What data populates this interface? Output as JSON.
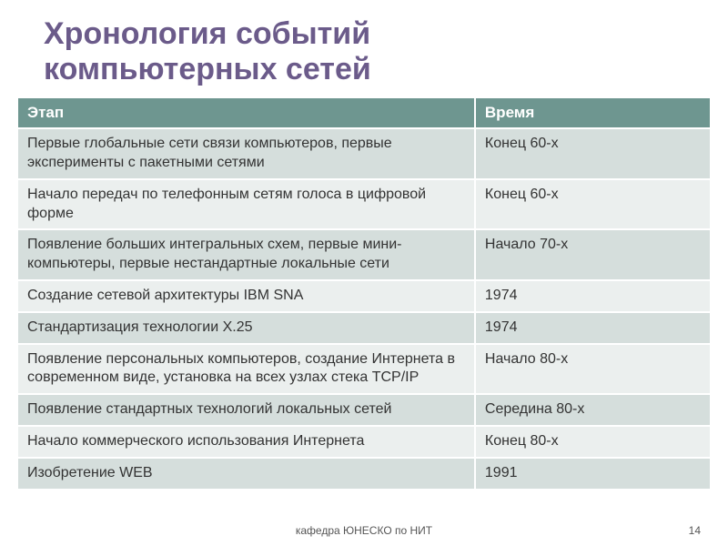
{
  "title_line1": "Хронология событий",
  "title_line2": "компьютерных сетей",
  "table": {
    "header_bg": "#6e9690",
    "row_bg_odd": "#d5dedc",
    "row_bg_even": "#ebefee",
    "header_text_color": "#ffffff",
    "cell_text_color": "#333333",
    "columns": [
      "Этап",
      "Время"
    ],
    "col_widths_pct": [
      66,
      34
    ],
    "rows": [
      [
        "Первые глобальные сети связи компьютеров, первые эксперименты с пакетными сетями",
        "Конец 60-х"
      ],
      [
        "Начало передач по телефонным сетям голоса в цифровой форме",
        "Конец 60-х"
      ],
      [
        "Появление больших интегральных схем, первые мини-компьютеры, первые нестандартные локальные сети",
        "Начало 70-х"
      ],
      [
        "Создание сетевой архитектуры IBM SNA",
        "1974"
      ],
      [
        "Стандартизация технологии X.25",
        "1974"
      ],
      [
        "Появление персональных компьютеров, создание Интернета в современном виде, установка на всех узлах стека TCP/IP",
        "Начало 80-х"
      ],
      [
        "Появление стандартных технологий локальных сетей",
        "Середина 80-х"
      ],
      [
        "Начало коммерческого использования Интернета",
        "Конец 80-х"
      ],
      [
        "Изобретение WEB",
        "1991"
      ]
    ]
  },
  "footer_text": "кафедра ЮНЕСКО по НИТ",
  "page_number": "14",
  "title_color": "#6b5b8a",
  "title_fontsize": 34,
  "cell_fontsize": 16,
  "header_fontsize": 17
}
